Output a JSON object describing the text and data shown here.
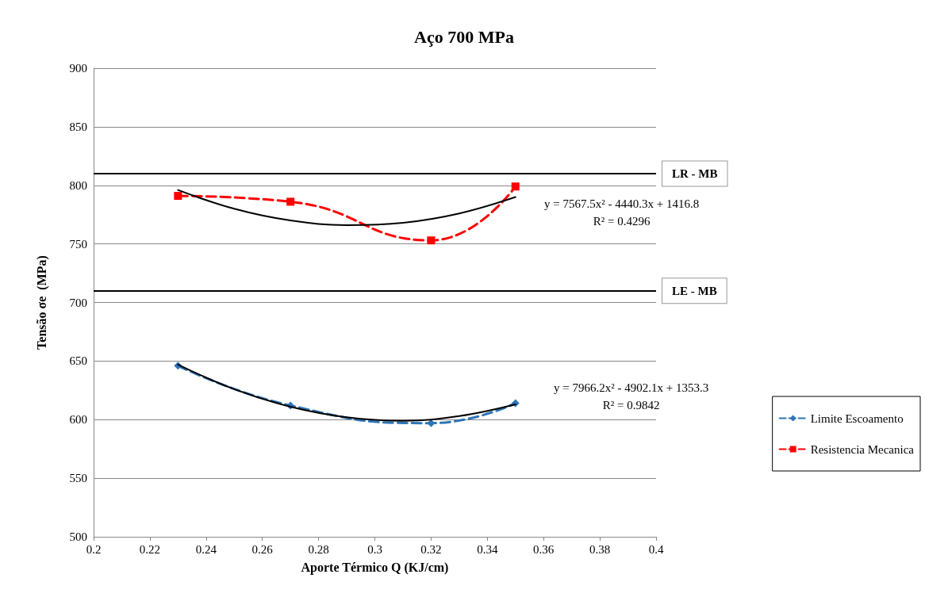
{
  "chart_data": {
    "type": "line",
    "title": "Aço 700 MPa",
    "xlabel": "Aporte Térmico Q (KJ/cm)",
    "ylabel": "Tensão σe  (MPa)",
    "xlim": [
      0.2,
      0.4
    ],
    "xticks": [
      0.2,
      0.22,
      0.24,
      0.26,
      0.28,
      0.3,
      0.32,
      0.34,
      0.36,
      0.38,
      0.4
    ],
    "ylim": [
      500,
      900
    ],
    "yticks": [
      500,
      550,
      600,
      650,
      700,
      750,
      800,
      850,
      900
    ],
    "grid": "y",
    "legend": "right",
    "series": [
      {
        "name": "Limite Escoamento",
        "color": "#2e75b6",
        "x": [
          0.23,
          0.27,
          0.32,
          0.35
        ],
        "values": [
          646,
          612,
          597,
          614
        ],
        "marker": "diamond",
        "line_style": "dashed"
      },
      {
        "name": "Resistencia Mecanica",
        "color": "#ff0000",
        "x": [
          0.23,
          0.27,
          0.32,
          0.35
        ],
        "values": [
          791,
          786,
          753,
          799
        ],
        "marker": "square",
        "line_style": "dashed"
      },
      {
        "color": "#000000",
        "x": [
          0.23,
          0.25,
          0.27,
          0.29,
          0.31,
          0.33,
          0.35
        ],
        "values": [
          796,
          780,
          770,
          766,
          768,
          776,
          790
        ],
        "marker": "none",
        "line_style": "solid"
      },
      {
        "color": "#000000",
        "x": [
          0.23,
          0.25,
          0.27,
          0.29,
          0.31,
          0.33,
          0.35
        ],
        "values": [
          647,
          626,
          611,
          602,
          599,
          603,
          613
        ],
        "marker": "none",
        "line_style": "solid"
      }
    ],
    "ref_lines": [
      {
        "axis": "y",
        "value": 810,
        "label": "LR - MB",
        "color": "#000000"
      },
      {
        "axis": "y",
        "value": 710,
        "label": "LE - MB",
        "color": "#000000"
      }
    ],
    "annotations": [
      "y = 7567.5x² - 4440.3x + 1416.8\nR² = 0.4296",
      "y = 7966.2x² - 4902.1x + 1353.3\nR² = 0.9842"
    ]
  }
}
